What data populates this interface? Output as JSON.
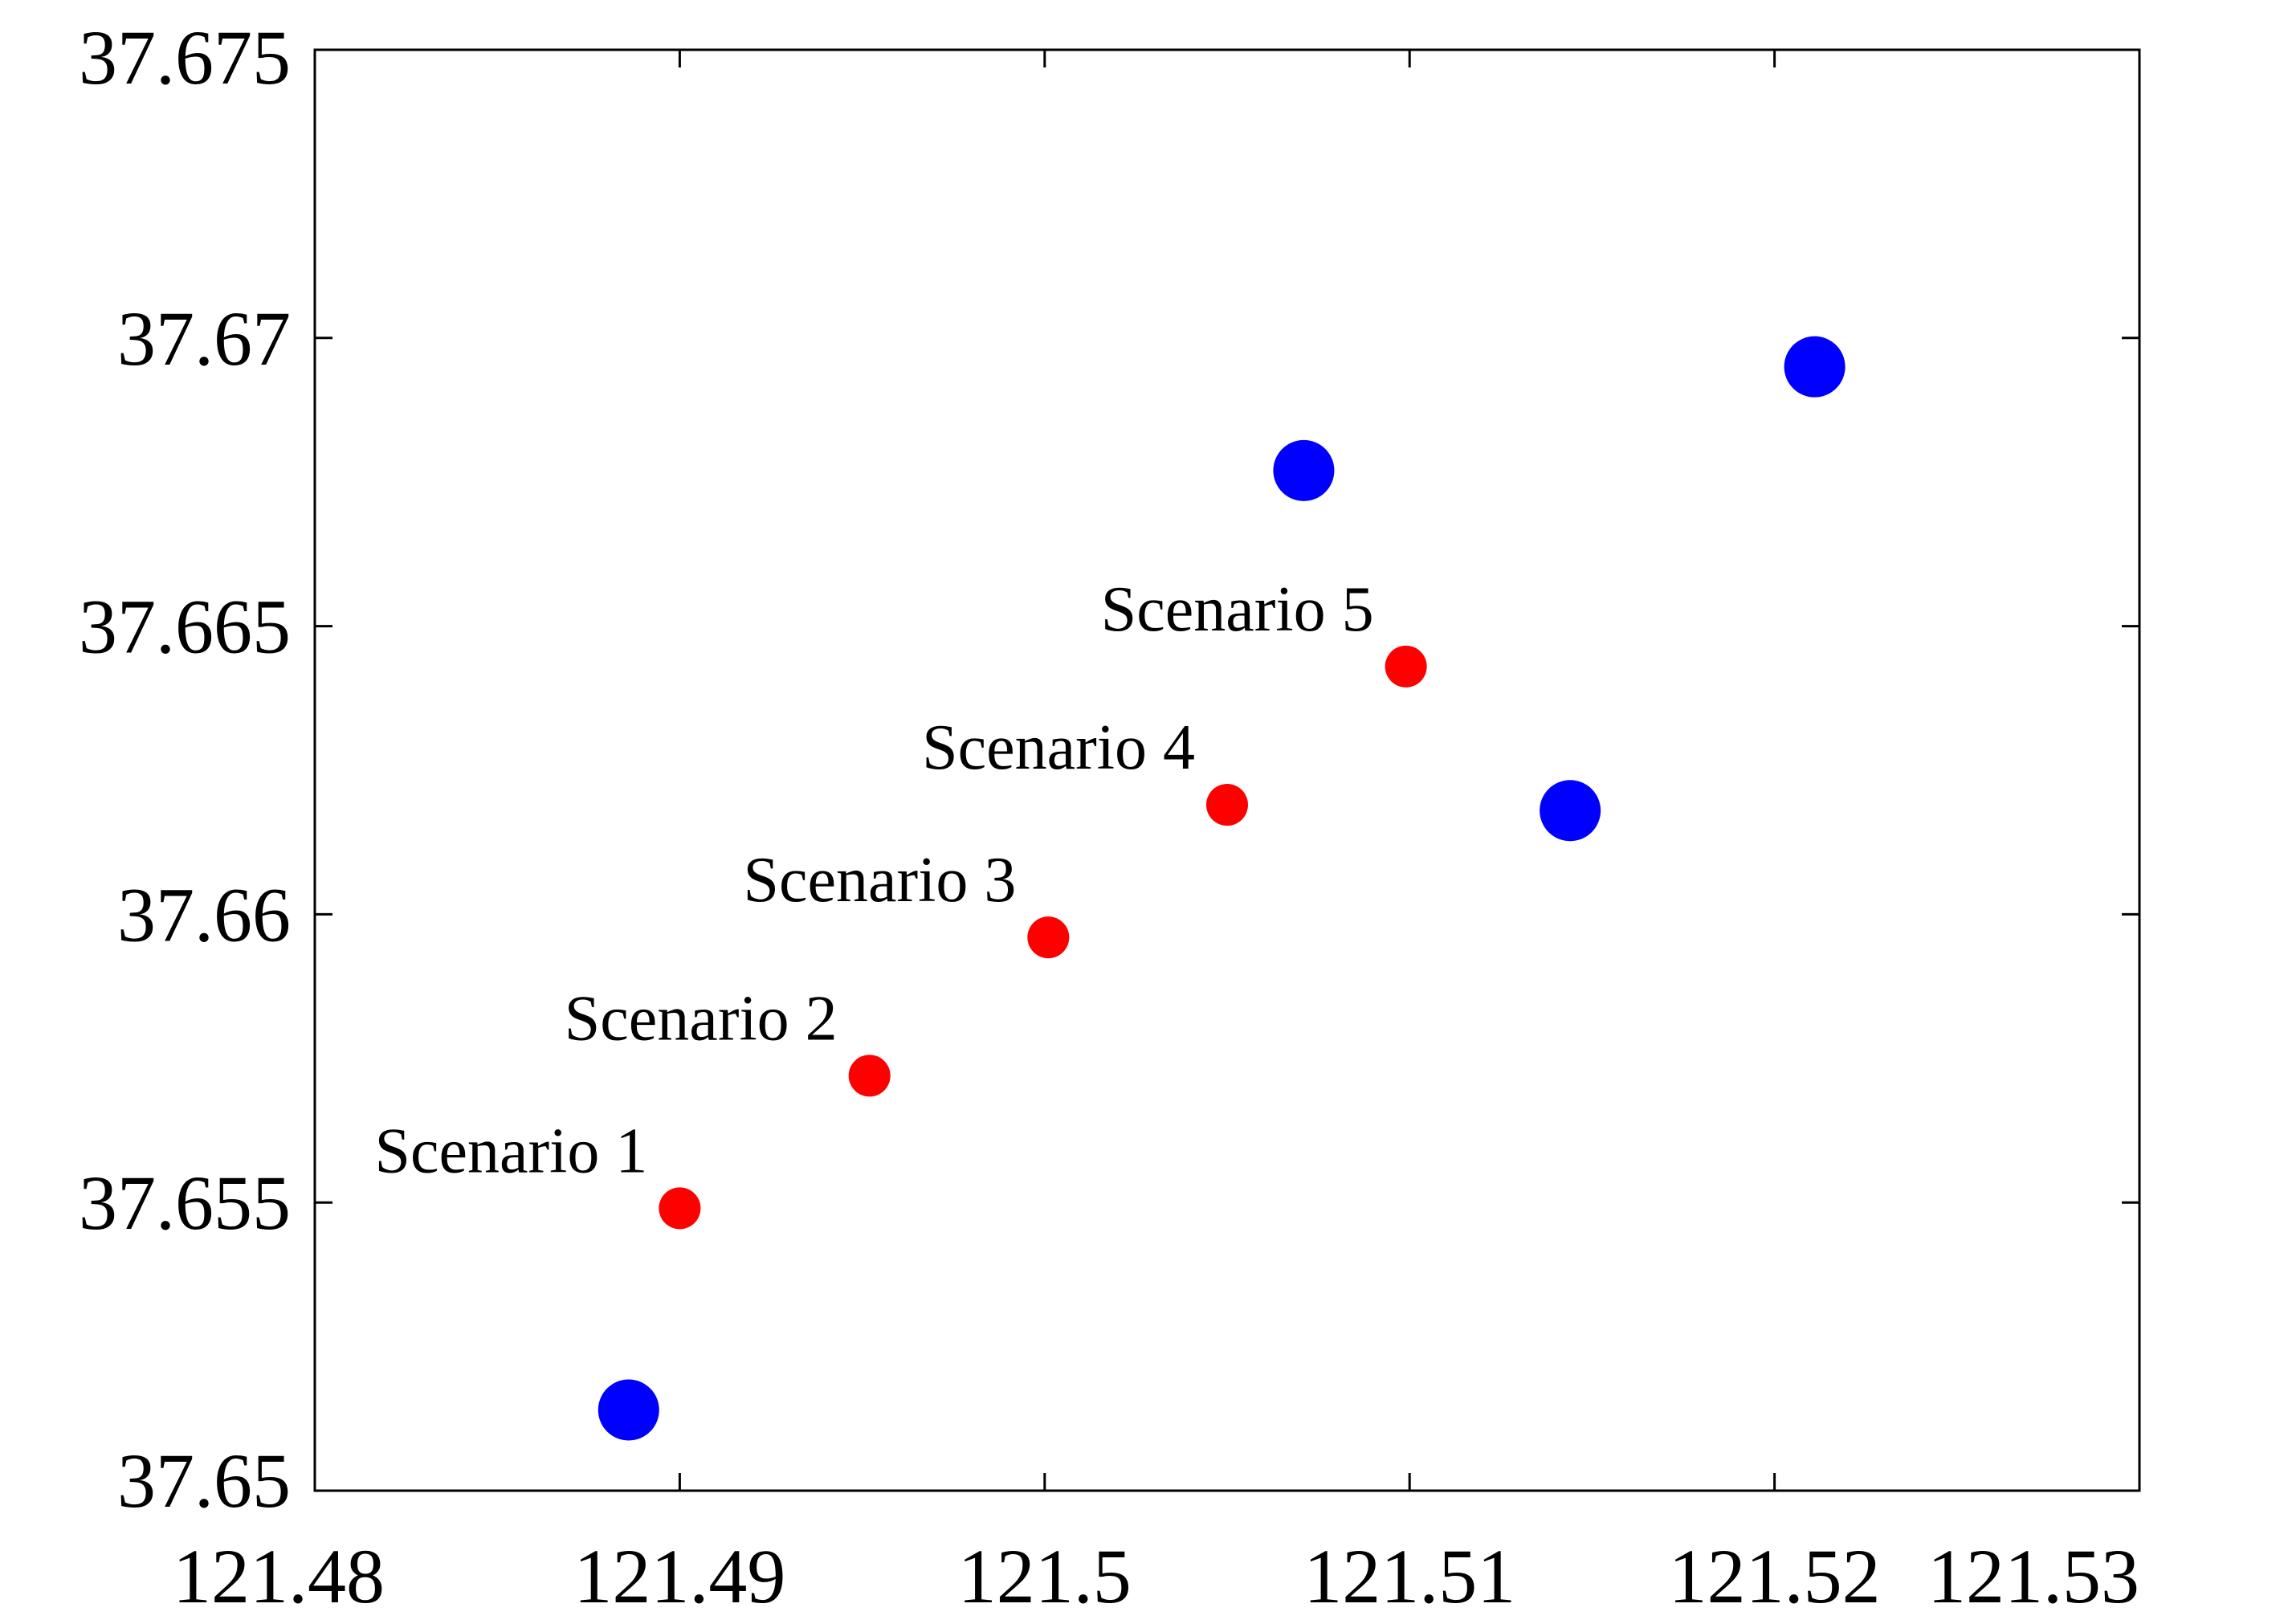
{
  "chart_data": {
    "type": "scatter",
    "title": "",
    "xlabel": "",
    "ylabel": "",
    "xlim": [
      121.48,
      121.53
    ],
    "ylim": [
      37.65,
      37.675
    ],
    "x_ticks": [
      121.48,
      121.49,
      121.5,
      121.51,
      121.52,
      121.53
    ],
    "x_tick_labels": [
      "121.48",
      "121.49",
      "121.5",
      "121.51",
      "121.52",
      "121.53"
    ],
    "y_ticks": [
      37.65,
      37.655,
      37.66,
      37.665,
      37.67,
      37.675
    ],
    "y_tick_labels": [
      "37.65",
      "37.655",
      "37.66",
      "37.665",
      "37.67",
      "37.675"
    ],
    "grid": false,
    "series": [
      {
        "color": "#0000ff",
        "marker": "large-circle",
        "points": [
          {
            "x": 121.4886,
            "y": 37.6514
          },
          {
            "x": 121.5071,
            "y": 37.6677
          },
          {
            "x": 121.5144,
            "y": 37.6618
          },
          {
            "x": 121.5211,
            "y": 37.6695
          }
        ]
      },
      {
        "color": "#ff0000",
        "marker": "small-circle",
        "points": [
          {
            "x": 121.49,
            "y": 37.6549,
            "label": "Scenario 1"
          },
          {
            "x": 121.4952,
            "y": 37.6572,
            "label": "Scenario 2"
          },
          {
            "x": 121.5001,
            "y": 37.6596,
            "label": "Scenario 3"
          },
          {
            "x": 121.505,
            "y": 37.6619,
            "label": "Scenario 4"
          },
          {
            "x": 121.5099,
            "y": 37.6643,
            "label": "Scenario 5"
          }
        ]
      }
    ]
  }
}
